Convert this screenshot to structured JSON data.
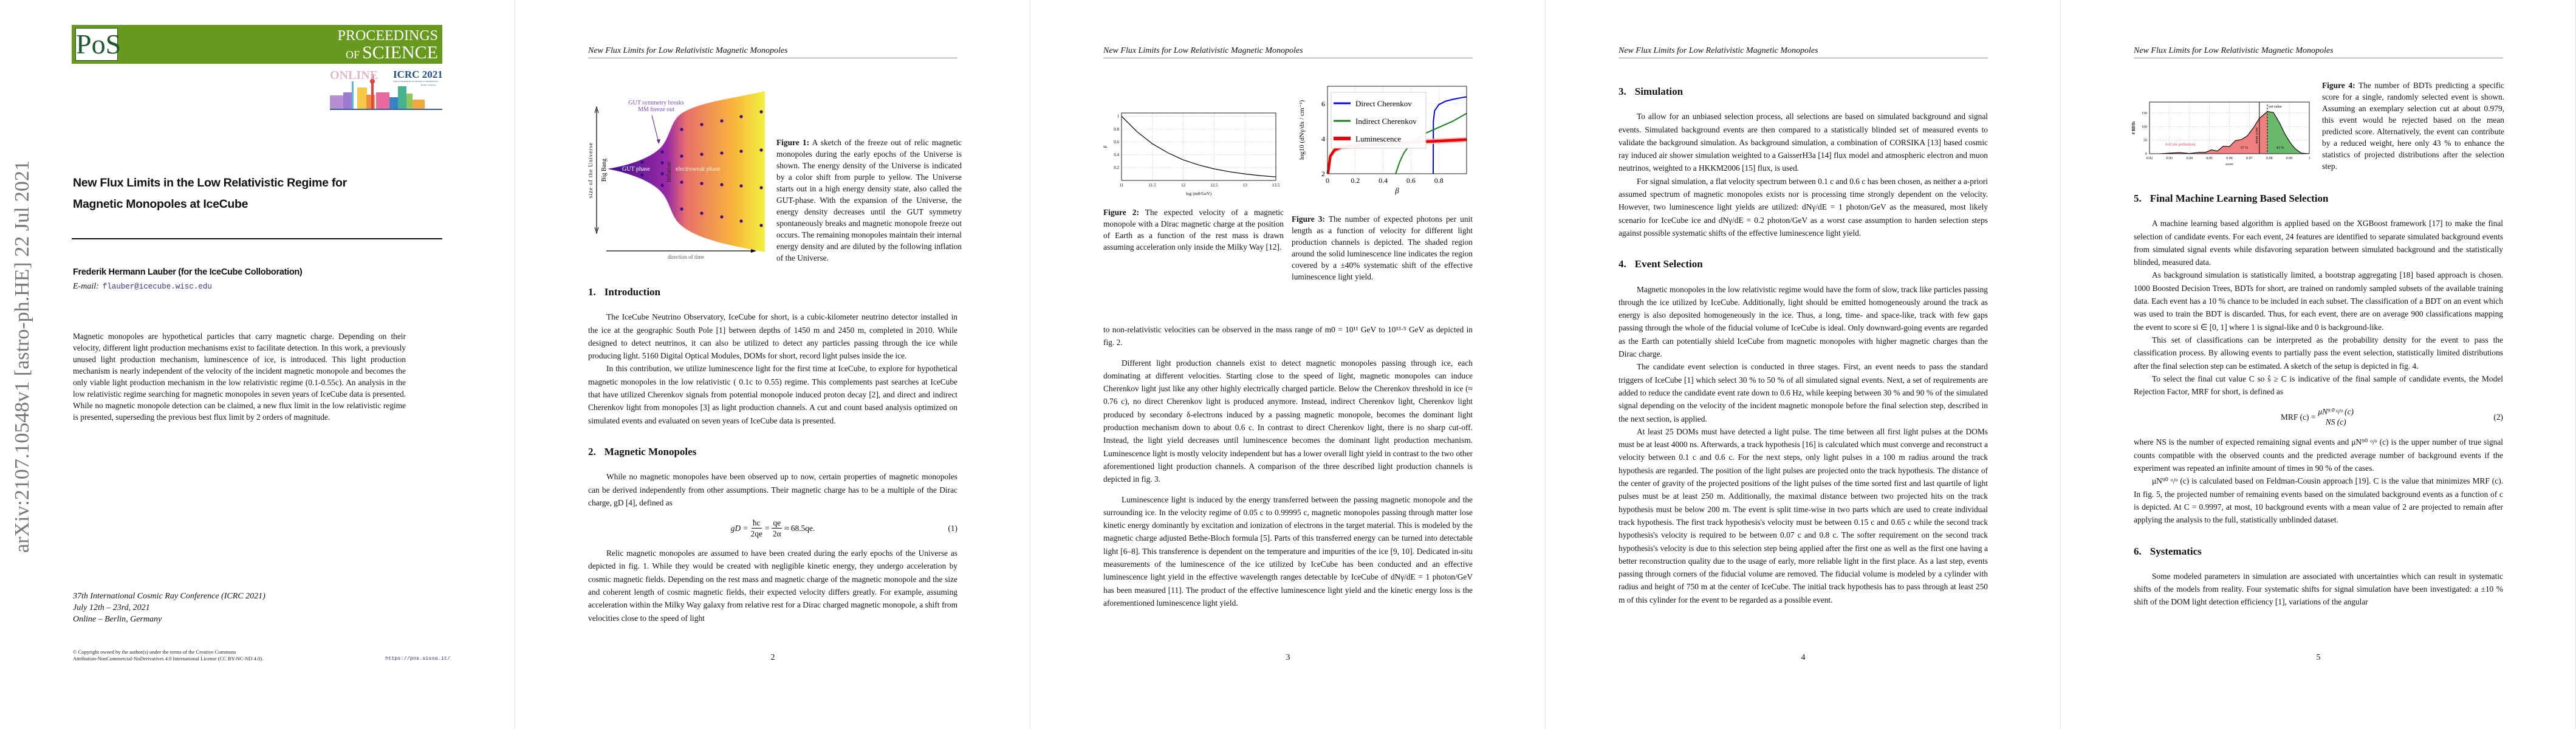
{
  "running_head": "New Flux Limits for Low Relativistic Magnetic Monopoles",
  "page1": {
    "logo_text": "PoS",
    "banner_line1": "PROCEEDINGS",
    "banner_line2_of": "OF",
    "banner_line2": "SCIENCE",
    "icrc_online": "ONLINE",
    "icrc_title": "ICRC 2021",
    "icrc_sub": "THE ASTROPARTICLE PHYSICS CONFERENCE",
    "icrc_loc": "Berlin | Germany",
    "title_line1": "New Flux Limits in the Low Relativistic Regime for",
    "title_line2": "Magnetic Monopoles at IceCube",
    "author": "Frederik Hermann Lauber (for the IceCube Colloboration)",
    "email_label": "E-mail:",
    "email": "flauber@icecube.wisc.edu",
    "abstract": "Magnetic monopoles are hypothetical particles that carry magnetic charge. Depending on their velocity, different light production mechanisms exist to facilitate detection. In this work, a previously unused light production mechanism, luminescence of ice, is introduced. This light production mechanism is nearly independent of the velocity of the incident magnetic monopole and becomes the only viable light production mechanism in the low relativistic regime (0.1-0.55c). An analysis in the low relativistic regime searching for magnetic monopoles in seven years of IceCube data is presented. While no magnetic monopole detection can be claimed, a new flux limit in the low relativistic regime is presented, superseding the previous best flux limit by 2 orders of magnitude.",
    "conf_line1": "37th International Cosmic Ray Conference (ICRC 2021)",
    "conf_line2": "July 12th – 23rd, 2021",
    "conf_line3": "Online – Berlin, Germany",
    "copyright_line1": "© Copyright owned by the author(s) under the terms of the Creative Commons",
    "copyright_line2": "Attribution-NonCommercial-NoDerivatives 4.0 International License (CC BY-NC-ND 4.0).",
    "url": "https://pos.sissa.it/",
    "arxiv_id": "arXiv:2107.10548v1  [astro-ph.HE]  22 Jul 2021"
  },
  "page2": {
    "fig1": {
      "label_gut_break_1": "GUT symmetry breaks",
      "label_gut_break_2": "MM freeze out",
      "label_size": "size of the Universe",
      "label_bigbang": "Big Bang",
      "label_gut_phase": "GUT phase",
      "label_inflation": "Inflation",
      "label_electroweak": "electroweak phase",
      "label_time": "direction of time",
      "colors": {
        "start": "#3b0f8c",
        "mid": "#e8706a",
        "end": "#f0f040",
        "dots": "#3d0a8a"
      }
    },
    "fig1_caption_label": "Figure 1:",
    "fig1_caption": "A sketch of the freeze out of relic magnetic monopoles during the early epochs of the Universe is shown. The energy density of the Universe is indicated by a color shift from purple to yellow. The Universe starts out in a high energy density state, also called the GUT-phase. With the expansion of the Universe, the energy density decreases until the GUT symmetry spontaneously breaks and magnetic monopole freeze out occurs. The remaining monopoles maintain their internal energy density and are diluted by the following inflation of the Universe.",
    "sec1_num": "1.",
    "sec1_title": "Introduction",
    "intro_p1": "The IceCube Neutrino Observatory, IceCube for short, is a cubic-kilometer neutrino detector installed in the ice at the geographic South Pole [1] between depths of 1450 m and 2450 m, completed in 2010. While designed to detect neutrinos, it can also be utilized to detect any particles passing through the ice while producing light. 5160 Digital Optical Modules, DOMs for short, record light pulses inside the ice.",
    "intro_p2": "In this contribution, we utilize luminescence light for the first time at IceCube, to explore for hypothetical magnetic monopoles in the low relativistic ( 0.1c to 0.55) regime. This complements past searches at IceCube that have utilized Cherenkov signals from potential monopole induced proton decay [2], and direct and indirect Cherenkov light from monopoles [3] as light production channels. A cut and count based analysis optimized on simulated events and evaluated on seven years of IceCube data is presented.",
    "sec2_num": "2.",
    "sec2_title": "Magnetic Monopoles",
    "mm_p1": "While no magnetic monopoles have been observed up to now, certain properties of magnetic monopoles can be derived independently from other assumptions. Their magnetic charge has to be a multiple of the Dirac charge, gD [4], defined as",
    "eq1": {
      "lhs": "gD =",
      "f1_num": "ħc",
      "f1_den": "2qe",
      "eq": "=",
      "f2_num": "qe",
      "f2_den": "2α",
      "rhs": "≈ 68.5qe.",
      "number": "(1)"
    },
    "mm_p2": "Relic magnetic monopoles are assumed to have been created during the early epochs of the Universe as depicted in fig. 1. While they would be created with negligible kinetic energy, they undergo acceleration by cosmic magnetic fields. Depending on the rest mass and magnetic charge of the magnetic monopole and the size and coherent length of cosmic magnetic fields, their expected velocity differs greatly. For example, assuming acceleration within the Milky Way galaxy from relative rest for a Dirac charged magnetic monopole, a shift from velocities close to the speed of light",
    "page_number": "2"
  },
  "page3": {
    "fig2_caption_label": "Figure 2:",
    "fig2_caption": "The expected velocity of a magnetic monopole with a Dirac magnetic charge at the position of Earth as a function of the rest mass is drawn assuming acceleration only inside the Milky Way [12].",
    "fig3_caption_label": "Figure 3:",
    "fig3_caption": "The number of expected photons per unit length as a function of velocity for different light production channels is depicted. The shaded region around the solid luminescence line indicates the region covered by a ±40% systematic shift of the effective luminescence light yield.",
    "p1": "to non-relativistic velocities can be observed in the mass range of m0 = 10¹¹ GeV to 10¹³·⁵ GeV as depicted in fig. 2.",
    "p2": "Different light production channels exist to detect magnetic monopoles passing through ice, each dominating at different velocities. Starting close to the speed of light, magnetic monopoles can induce Cherenkov light just like any other highly electrically charged particle. Below the Cherenkov threshold in ice (≈ 0.76 c), no direct Cherenkov light is produced anymore. Instead, indirect Cherenkov light, Cherenkov light produced by secondary δ-electrons induced by a passing magnetic monopole, becomes the dominant light production mechanism down to about 0.6 c. In contrast to direct Cherenkov light, there is no sharp cut-off. Instead, the light yield decreases until luminescence becomes the dominant light production mechanism. Luminescence light is mostly velocity independent but has a lower overall light yield in contrast to the two other aforementioned light production channels. A comparison of the three described light production channels is depicted in fig. 3.",
    "p3": "Luminescence light is induced by the energy transferred between the passing magnetic monopole and the surrounding ice. In the velocity regime of 0.05 c to 0.99995 c, magnetic monopoles passing through matter lose kinetic energy dominantly by excitation and ionization of electrons in the target material. This is modeled by the magnetic charge adjusted Bethe-Bloch formula [5]. Parts of this transferred energy can be turned into detectable light [6–8]. This transference is dependent on the temperature and impurities of the ice [9, 10]. Dedicated in-situ measurements of the luminescence of the ice utilized by IceCube has been conducted and an effective luminescence light yield in the effective wavelength ranges detectable by IceCube of dNγ/dE = 1 photon/GeV has been measured [11]. The product of the effective luminescence light yield and the kinetic energy loss is the aforementioned luminescence light yield.",
    "page_number": "3"
  },
  "page4": {
    "sec3_num": "3.",
    "sec3_title": "Simulation",
    "p1": "To allow for an unbiased selection process, all selections are based on simulated background and signal events. Simulated background events are then compared to a statistically blinded set of measured events to validate the background simulation. As background simulation, a combination of CORSIKA [13] based cosmic ray induced air shower simulation weighted to a GaisserH3a [14] flux model and atmospheric electron and muon neutrinos, weighted to a HKKM2006 [15] flux, is used.",
    "p2": "For signal simulation, a flat velocity spectrum between 0.1 c and 0.6 c has been chosen, as neither a a-priori assumed spectrum of magnetic monopoles exists nor is processing time strongly dependent on the velocity. However, two luminescence light yields are utilized: dNγ/dE = 1 photon/GeV as the measured, most likely scenario for IceCube ice and dNγ/dE = 0.2 photon/GeV as a worst case assumption to harden selection steps against possible systematic shifts of the effective luminescence light yield.",
    "sec4_num": "4.",
    "sec4_title": "Event Selection",
    "p3": "Magnetic monopoles in the low relativistic regime would have the form of slow, track like particles passing through the ice utilized by IceCube. Additionally, light should be emitted homogeneously around the track as energy is also deposited homogeneously in the ice. Thus, a long, time- and space-like, track with few gaps passing through the whole of the fiducial volume of IceCube is ideal. Only downward-going events are regarded as the Earth can potentially shield IceCube from magnetic monopoles with higher magnetic charges than the Dirac charge.",
    "p4": "The candidate event selection is conducted in three stages. First, an event needs to pass the standard triggers of IceCube [1] which select 30 % to 50 % of all simulated signal events. Next, a set of requirements are added to reduce the candidate event rate down to 0.6 Hz, while keeping between 30 % and 90 % of the simulated signal depending on the velocity of the incident magnetic monopole before the final selection step, described in the next section, is applied.",
    "p5": "At least 25 DOMs must have detected a light pulse. The time between all first light pulses at the DOMs must be at least 4000 ns. Afterwards, a track hypothesis [16] is calculated which must converge and reconstruct a velocity between 0.1 c and 0.6 c. For the next steps, only light pulses in a 100 m radius around the track hypothesis are regarded. The position of the light pulses are projected onto the track hypothesis. The distance of the center of gravity of the projected positions of the light pulses of the time sorted first and last quartile of light pulses must be at least 250 m. Additionally, the maximal distance between two projected hits on the track hypothesis must be below 200 m. The event is split time-wise in two parts which are used to create individual track hypothesis. The first track hypothesis's velocity must be between 0.15 c and 0.65 c while the second track hypothesis's velocity is required to be between 0.07 c and 0.8 c. The softer requirement on the second track hypothesis's velocity is due to this selection step being applied after the first one as well as the first one having a better reconstruction quality due to the usage of early, more reliable light in the first place. As a last step, events passing through corners of the fiducial volume are removed. The fiducial volume is modeled by a cylinder with radius and height of 750 m at the center of IceCube. The initial track hypothesis has to pass through at least 250 m of this cylinder for the event to be regarded as a possible event.",
    "page_number": "4"
  },
  "page5": {
    "fig4_caption_label": "Figure 4:",
    "fig4_caption": "The number of BDTs predicting a specific score for a single, randomly selected event is shown. Assuming an exemplary selection cut at about 0.979, this event would be rejected based on the mean predicted score. Alternatively, the event can contribute by a reduced weight, here only 43 % to enhance the statistics of projected distributions after the selection step.",
    "sec5_num": "5.",
    "sec5_title": "Final Machine Learning Based Selection",
    "p1": "A machine learning based algorithm is applied based on the XGBoost framework [17] to make the final selection of candidate events. For each event, 24 features are identified to separate simulated background events from simulated signal events while disfavoring separation between simulated background and the statistically blinded, measured data.",
    "p2": "As background simulation is statistically limited, a bootstrap aggregating [18] based approach is chosen. 1000 Boosted Decision Trees, BDTs for short, are trained on randomly sampled subsets of the available training data. Each event has a 10 % chance to be included in each subset. The classification of a BDT on an event which was used to train the BDT is discarded. Thus, for each event, there are on average 900 classifications mapping the event to score si ∈ [0, 1] where 1 is signal-like and 0 is background-like.",
    "p3": "This set of classifications can be interpreted as the probability density for the event to pass the classification process. By allowing events to partially pass the event selection, statistically limited distributions after the final selection step can be estimated. A sketch of the setup is depicted in fig. 4.",
    "p4": "To select the final cut value C so ŝ ≥ C is indicative of the final sample of candidate events, the Model Rejection Factor, MRF for short, is defined as",
    "eq2": {
      "lhs": "MRF (c) =",
      "num": "μN⁹⁰ ᵒ/ᵒ (c)",
      "den": "NS (c)",
      "number": "(2)"
    },
    "p5": "where NS is the number of expected remaining signal events and μN⁹⁰ ᵒ/ᵒ (c) is the upper number of true signal counts compatible with the observed counts and the predicted average number of background events if the experiment was repeated an infinite amount of times in 90 % of the cases.",
    "p6": "μN⁹⁰ ᵒ/ᵒ (c) is calculated based on Feldman-Cousin approach [19]. C is the value that minimizes MRF (c). In fig. 5, the projected number of remaining events based on the simulated background events as a function of c is depicted. At C = 0.9997, at most, 10 background events with a mean value of 2 are projected to remain after applying the analysis to the full, statistically unblinded dataset.",
    "sec6_num": "6.",
    "sec6_title": "Systematics",
    "p7": "Some modeled parameters in simulation are associated with uncertainties which can result in systematic shifts of the models from reality. Four systematic shifts for signal simulation have been investigated: a ±10 % shift of the DOM light detection efficiency [1], variations of the angular",
    "page_number": "5"
  },
  "chart_data": [
    {
      "id": "fig2",
      "type": "line",
      "xlabel": "log (m0/GeV)",
      "ylabel": "β",
      "xlim": [
        11,
        13.5
      ],
      "ylim": [
        0,
        1.05
      ],
      "xticks": [
        11,
        11.5,
        12,
        12.5,
        13,
        13.5
      ],
      "xtick_labels": [
        "11",
        "11.5",
        "12",
        "12.5",
        "13",
        "13.5"
      ],
      "yticks": [
        0.2,
        0.4,
        0.6,
        0.8,
        1
      ],
      "ytick_labels": [
        "0.2",
        "0.4",
        "0.6",
        "0.8",
        "1"
      ],
      "grid": true,
      "series": [
        {
          "color": "#000000",
          "x": [
            11,
            11.25,
            11.5,
            11.75,
            12,
            12.25,
            12.5,
            12.75,
            13,
            13.25,
            13.5
          ],
          "y": [
            1.0,
            0.76,
            0.57,
            0.43,
            0.32,
            0.24,
            0.18,
            0.135,
            0.1,
            0.075,
            0.055
          ]
        }
      ]
    },
    {
      "id": "fig3",
      "type": "line",
      "xlabel": "β",
      "ylabel": "log10 (dNγ/dx / cm⁻¹)",
      "xlim": [
        0,
        1
      ],
      "ylim": [
        2,
        7
      ],
      "xticks": [
        0,
        0.2,
        0.4,
        0.6,
        0.8
      ],
      "xtick_labels": [
        "0",
        "0.2",
        "0.4",
        "0.6",
        "0.8"
      ],
      "yticks": [
        2,
        4,
        6
      ],
      "ytick_labels": [
        "2",
        "4",
        "6"
      ],
      "grid": true,
      "legend_position": "top-left",
      "series": [
        {
          "name": "Direct Cherenkov",
          "color": "#0000ee",
          "x": [
            0.76,
            0.761,
            0.77,
            0.8,
            0.85,
            0.9,
            0.95,
            1.0
          ],
          "y": [
            2,
            5.0,
            5.6,
            5.95,
            6.15,
            6.25,
            6.33,
            6.4
          ]
        },
        {
          "name": "Indirect Cherenkov",
          "color": "#1a7f1a",
          "x": [
            0.49,
            0.52,
            0.55,
            0.6,
            0.65,
            0.7,
            0.8,
            0.9,
            1.0
          ],
          "y": [
            2,
            2.7,
            3.2,
            3.75,
            4.05,
            4.3,
            4.65,
            5.0,
            5.45
          ]
        },
        {
          "name": "Luminescence",
          "color": "#ee0000",
          "band": 0.15,
          "x": [
            0.003,
            0.02,
            0.05,
            0.1,
            0.2,
            0.4,
            0.6,
            0.8,
            1.0
          ],
          "y": [
            2,
            3.0,
            3.35,
            3.52,
            3.63,
            3.72,
            3.8,
            3.87,
            3.95
          ]
        }
      ]
    },
    {
      "id": "fig4",
      "type": "area",
      "xlabel": "score",
      "ylabel": "# BDTs",
      "xlim": [
        0.92,
        1
      ],
      "ylim": [
        0,
        190
      ],
      "xticks": [
        0.92,
        0.93,
        0.94,
        0.95,
        0.96,
        0.97,
        0.98,
        0.99,
        1
      ],
      "xtick_labels": [
        "0.92",
        "0.93",
        "0.94",
        "0.95",
        "0.96",
        "0.97",
        "0.98",
        "0.99",
        "1"
      ],
      "yticks": [
        0,
        50,
        100,
        150
      ],
      "ytick_labels": [
        "0",
        "50",
        "100",
        "150"
      ],
      "grid": true,
      "x": [
        0.92,
        0.925,
        0.93,
        0.935,
        0.94,
        0.945,
        0.948,
        0.951,
        0.954,
        0.957,
        0.96,
        0.963,
        0.966,
        0.969,
        0.972,
        0.975,
        0.979,
        0.982,
        0.985,
        0.988,
        0.991,
        0.993,
        0.996,
        1.0
      ],
      "y": [
        0,
        0,
        2,
        4,
        1,
        5,
        5,
        14,
        10,
        28,
        26,
        48,
        52,
        66,
        95,
        130,
        155,
        152,
        115,
        70,
        35,
        18,
        2,
        0
      ],
      "mean_score": 0.975,
      "cut_value": 0.979,
      "below_color": "#f08080",
      "above_color": "#6ab86a",
      "annotations": {
        "mean": "mean score",
        "cut": "cut value",
        "below_pct": "57 %",
        "above_pct": "43 %",
        "watermark": "IceCube preliminary"
      }
    }
  ]
}
